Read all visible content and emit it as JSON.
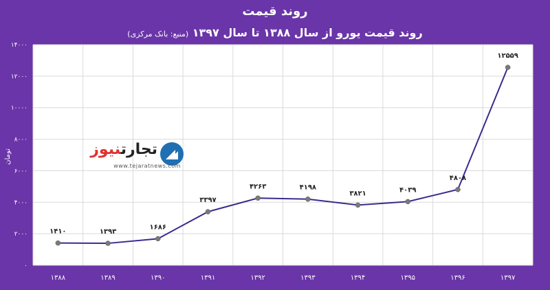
{
  "header": {
    "title": "روند قیمت",
    "subtitle": "روند قیمت یورو از سال ۱۳۸۸ تا سال ۱۳۹۷",
    "source_note": "(منبع: بانک مرکزی)"
  },
  "logo": {
    "name_part1": "تجارت",
    "name_part2": "نیوز",
    "url": "www.tejaratnews.com"
  },
  "colors": {
    "background": "#6a35a8",
    "plot_bg": "#ffffff",
    "line": "#3b2a8c",
    "marker": "#7a7a7a",
    "grid": "#d9d9d9"
  },
  "chart_data": {
    "type": "line",
    "title": "روند قیمت",
    "ylabel": "تومان",
    "xlabel": "",
    "categories": [
      "۱۳۸۸",
      "۱۳۸۹",
      "۱۳۹۰",
      "۱۳۹۱",
      "۱۳۹۲",
      "۱۳۹۳",
      "۱۳۹۴",
      "۱۳۹۵",
      "۱۳۹۶",
      "۱۳۹۷"
    ],
    "values": [
      1410,
      1393,
      1686,
      3397,
      4263,
      4198,
      3821,
      4039,
      4808,
      12559
    ],
    "data_labels": [
      "۱۴۱۰",
      "۱۳۹۳",
      "۱۶۸۶",
      "۳۳۹۷",
      "۴۲۶۳",
      "۴۱۹۸",
      "۳۸۲۱",
      "۴۰۳۹",
      "۴۸۰۸",
      "۱۲۵۵۹"
    ],
    "ylim": [
      0,
      14000
    ],
    "yticks": [
      0,
      2000,
      4000,
      6000,
      8000,
      10000,
      12000,
      14000
    ],
    "ytick_labels": [
      "۰",
      "۲۰۰۰",
      "۴۰۰۰",
      "۶۰۰۰",
      "۸۰۰۰",
      "۱۰۰۰۰",
      "۱۲۰۰۰",
      "۱۴۰۰۰"
    ],
    "grid": true
  }
}
